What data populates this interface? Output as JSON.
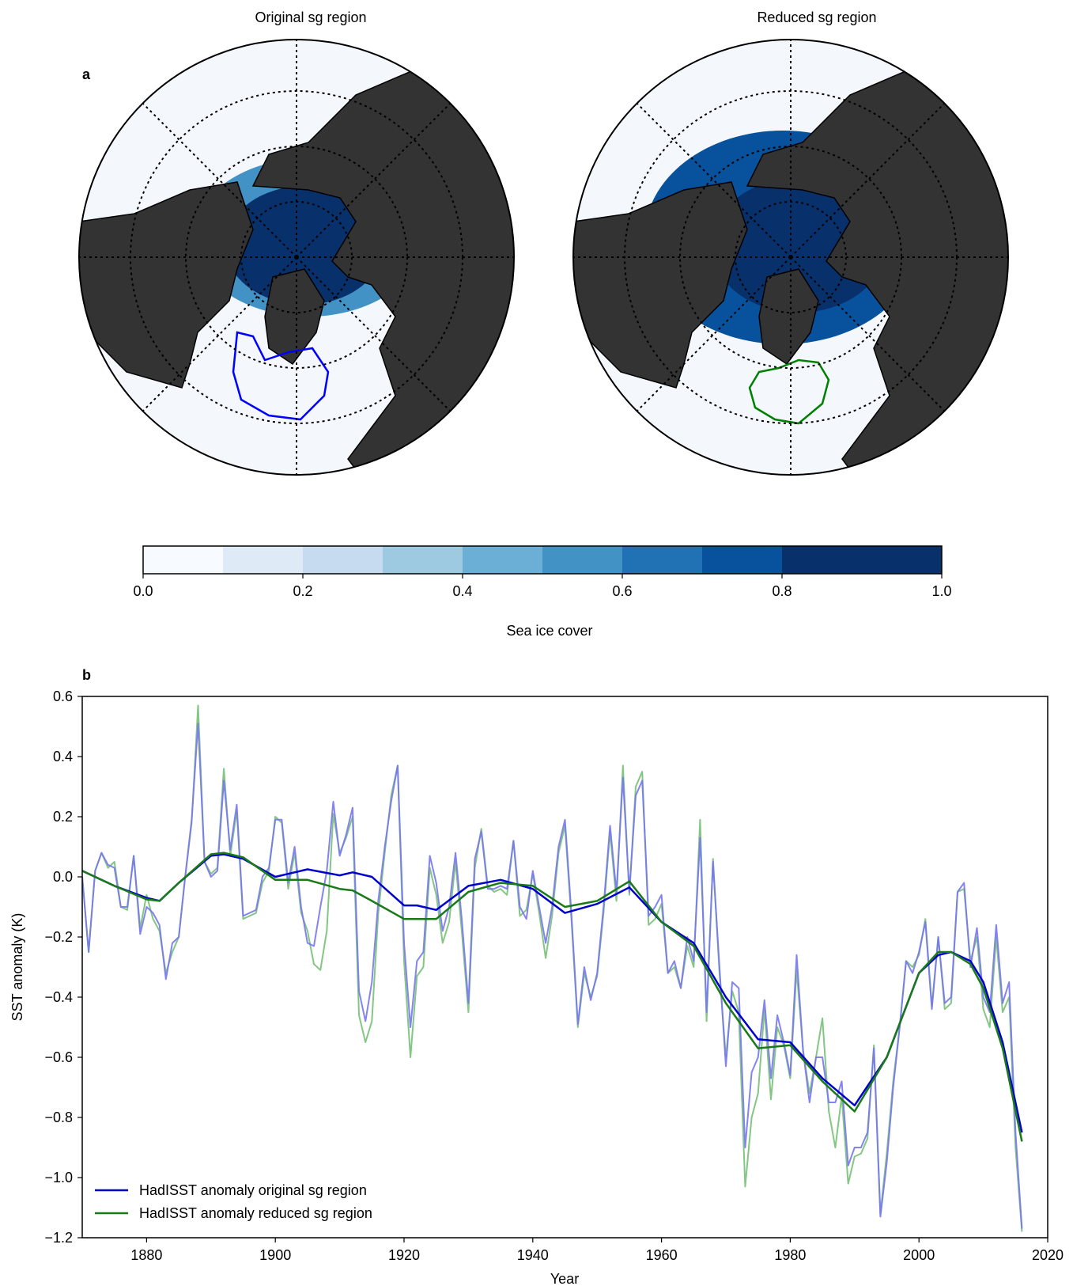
{
  "panel_a": {
    "label": "a",
    "left_title": "Original sg region",
    "right_title": "Reduced sg region",
    "colorbar": {
      "label": "Sea ice cover",
      "ticks": [
        "0.0",
        "0.2",
        "0.4",
        "0.6",
        "0.8",
        "1.0"
      ],
      "colors": [
        "#f7fbff",
        "#deebf7",
        "#c6dbef",
        "#9ecae1",
        "#6baed6",
        "#4292c6",
        "#2171b5",
        "#08519c",
        "#08306b",
        "#08306b"
      ]
    },
    "colors": {
      "land": "#333333",
      "ocean": "#f4f8fd",
      "original_region": "#0000ff",
      "reduced_region": "#008000",
      "ice_dark": "#08306b",
      "ice_mid": "#08519c",
      "ice_light": "#4292c6"
    }
  },
  "panel_b": {
    "label": "b"
  },
  "chart_data": {
    "type": "line",
    "xlabel": "Year",
    "ylabel": "SST anomaly (K)",
    "xlim": [
      1870,
      2020
    ],
    "ylim": [
      -1.2,
      0.6
    ],
    "xticks": [
      "1880",
      "1900",
      "1920",
      "1940",
      "1960",
      "1980",
      "2000",
      "2020"
    ],
    "yticks": [
      "0.6",
      "0.4",
      "0.2",
      "0.0",
      "−0.2",
      "−0.4",
      "−0.6",
      "−0.8",
      "−1.0",
      "−1.2"
    ],
    "legend_position": "bottom-left",
    "series": [
      {
        "name": "HadISST anomaly original sg region",
        "color": "#0000cc",
        "x": [
          1870,
          1875,
          1880,
          1882,
          1885,
          1890,
          1892,
          1895,
          1900,
          1905,
          1910,
          1912,
          1915,
          1920,
          1922,
          1925,
          1930,
          1935,
          1940,
          1945,
          1950,
          1955,
          1960,
          1965,
          1970,
          1975,
          1980,
          1985,
          1990,
          1995,
          2000,
          2003,
          2005,
          2008,
          2010,
          2013,
          2016
        ],
        "y": [
          0.02,
          -0.03,
          -0.07,
          -0.08,
          -0.02,
          0.07,
          0.075,
          0.06,
          0.0,
          0.025,
          0.005,
          0.015,
          0.0,
          -0.095,
          -0.095,
          -0.11,
          -0.03,
          -0.01,
          -0.04,
          -0.12,
          -0.09,
          -0.035,
          -0.15,
          -0.22,
          -0.4,
          -0.54,
          -0.55,
          -0.67,
          -0.76,
          -0.6,
          -0.32,
          -0.26,
          -0.25,
          -0.28,
          -0.35,
          -0.55,
          -0.85
        ]
      },
      {
        "name": "HadISST anomaly reduced sg region",
        "color": "#1a7a1a",
        "x": [
          1870,
          1875,
          1880,
          1882,
          1885,
          1890,
          1892,
          1895,
          1900,
          1905,
          1910,
          1912,
          1915,
          1920,
          1922,
          1925,
          1930,
          1935,
          1940,
          1945,
          1950,
          1955,
          1960,
          1965,
          1970,
          1975,
          1980,
          1985,
          1990,
          1995,
          2000,
          2003,
          2005,
          2008,
          2010,
          2013,
          2016
        ],
        "y": [
          0.02,
          -0.03,
          -0.075,
          -0.08,
          -0.02,
          0.075,
          0.08,
          0.065,
          -0.01,
          -0.01,
          -0.04,
          -0.045,
          -0.08,
          -0.14,
          -0.14,
          -0.14,
          -0.05,
          -0.02,
          -0.03,
          -0.1,
          -0.08,
          -0.015,
          -0.15,
          -0.23,
          -0.42,
          -0.57,
          -0.56,
          -0.68,
          -0.78,
          -0.6,
          -0.32,
          -0.25,
          -0.25,
          -0.29,
          -0.37,
          -0.57,
          -0.88
        ]
      },
      {
        "name": "",
        "color": "#7777ee",
        "x": [
          1870,
          1871,
          1872,
          1873,
          1874,
          1875,
          1876,
          1877,
          1878,
          1879,
          1880,
          1881,
          1882,
          1883,
          1884,
          1885,
          1886,
          1887,
          1888,
          1889,
          1890,
          1891,
          1892,
          1893,
          1894,
          1895,
          1896,
          1897,
          1898,
          1899,
          1900,
          1901,
          1902,
          1903,
          1904,
          1905,
          1906,
          1907,
          1908,
          1909,
          1910,
          1911,
          1912,
          1913,
          1914,
          1915,
          1916,
          1917,
          1918,
          1919,
          1920,
          1921,
          1922,
          1923,
          1924,
          1925,
          1926,
          1927,
          1928,
          1929,
          1930,
          1931,
          1932,
          1933,
          1934,
          1935,
          1936,
          1937,
          1938,
          1939,
          1940,
          1941,
          1942,
          1943,
          1944,
          1945,
          1946,
          1947,
          1948,
          1949,
          1950,
          1951,
          1952,
          1953,
          1954,
          1955,
          1956,
          1957,
          1958,
          1959,
          1960,
          1961,
          1962,
          1963,
          1964,
          1965,
          1966,
          1967,
          1968,
          1969,
          1970,
          1971,
          1972,
          1973,
          1974,
          1975,
          1976,
          1977,
          1978,
          1979,
          1980,
          1981,
          1982,
          1983,
          1984,
          1985,
          1986,
          1987,
          1988,
          1989,
          1990,
          1991,
          1992,
          1993,
          1994,
          1995,
          1996,
          1997,
          1998,
          1999,
          2000,
          2001,
          2002,
          2003,
          2004,
          2005,
          2006,
          2007,
          2008,
          2009,
          2010,
          2011,
          2012,
          2013,
          2014,
          2015,
          2016
        ],
        "y": [
          0.0,
          -0.25,
          0.02,
          0.08,
          0.04,
          0.03,
          -0.1,
          -0.1,
          0.07,
          -0.19,
          -0.1,
          -0.12,
          -0.16,
          -0.34,
          -0.22,
          -0.2,
          0.0,
          0.19,
          0.51,
          0.05,
          0.0,
          0.02,
          0.32,
          0.09,
          0.24,
          -0.13,
          -0.12,
          -0.11,
          0.0,
          0.03,
          0.19,
          0.19,
          -0.02,
          0.1,
          -0.1,
          -0.22,
          -0.23,
          -0.1,
          0.02,
          0.25,
          0.07,
          0.14,
          0.23,
          -0.38,
          -0.48,
          -0.35,
          -0.08,
          0.1,
          0.25,
          0.37,
          -0.22,
          -0.5,
          -0.28,
          -0.25,
          0.07,
          -0.02,
          -0.18,
          -0.1,
          0.08,
          -0.15,
          -0.42,
          0.06,
          0.15,
          -0.04,
          -0.04,
          -0.03,
          -0.04,
          0.12,
          -0.1,
          -0.14,
          0.02,
          -0.1,
          -0.22,
          -0.1,
          0.1,
          0.19,
          -0.12,
          -0.49,
          -0.3,
          -0.41,
          -0.32,
          -0.1,
          0.17,
          -0.05,
          0.33,
          -0.05,
          0.27,
          0.32,
          -0.13,
          -0.1,
          -0.06,
          -0.32,
          -0.28,
          -0.37,
          -0.2,
          -0.28,
          0.13,
          -0.45,
          0.05,
          -0.3,
          -0.63,
          -0.35,
          -0.37,
          -0.9,
          -0.65,
          -0.6,
          -0.41,
          -0.67,
          -0.46,
          -0.55,
          -0.66,
          -0.26,
          -0.58,
          -0.75,
          -0.6,
          -0.6,
          -0.75,
          -0.75,
          -0.68,
          -0.96,
          -0.9,
          -0.9,
          -0.85,
          -0.57,
          -1.13,
          -0.95,
          -0.7,
          -0.5,
          -0.28,
          -0.32,
          -0.25,
          -0.15,
          -0.44,
          -0.2,
          -0.42,
          -0.4,
          -0.05,
          -0.02,
          -0.3,
          -0.17,
          -0.4,
          -0.45,
          -0.16,
          -0.42,
          -0.35,
          -0.85,
          -1.17
        ]
      },
      {
        "name": "",
        "color": "#77c077",
        "x": [
          1870,
          1871,
          1872,
          1873,
          1874,
          1875,
          1876,
          1877,
          1878,
          1879,
          1880,
          1881,
          1882,
          1883,
          1884,
          1885,
          1886,
          1887,
          1888,
          1889,
          1890,
          1891,
          1892,
          1893,
          1894,
          1895,
          1896,
          1897,
          1898,
          1899,
          1900,
          1901,
          1902,
          1903,
          1904,
          1905,
          1906,
          1907,
          1908,
          1909,
          1910,
          1911,
          1912,
          1913,
          1914,
          1915,
          1916,
          1917,
          1918,
          1919,
          1920,
          1921,
          1922,
          1923,
          1924,
          1925,
          1926,
          1927,
          1928,
          1929,
          1930,
          1931,
          1932,
          1933,
          1934,
          1935,
          1936,
          1937,
          1938,
          1939,
          1940,
          1941,
          1942,
          1943,
          1944,
          1945,
          1946,
          1947,
          1948,
          1949,
          1950,
          1951,
          1952,
          1953,
          1954,
          1955,
          1956,
          1957,
          1958,
          1959,
          1960,
          1961,
          1962,
          1963,
          1964,
          1965,
          1966,
          1967,
          1968,
          1969,
          1970,
          1971,
          1972,
          1973,
          1974,
          1975,
          1976,
          1977,
          1978,
          1979,
          1980,
          1981,
          1982,
          1983,
          1984,
          1985,
          1986,
          1987,
          1988,
          1989,
          1990,
          1991,
          1992,
          1993,
          1994,
          1995,
          1996,
          1997,
          1998,
          1999,
          2000,
          2001,
          2002,
          2003,
          2004,
          2005,
          2006,
          2007,
          2008,
          2009,
          2010,
          2011,
          2012,
          2013,
          2014,
          2015,
          2016
        ],
        "y": [
          0.0,
          -0.25,
          0.02,
          0.08,
          0.03,
          0.05,
          -0.1,
          -0.11,
          0.07,
          -0.17,
          -0.06,
          -0.14,
          -0.18,
          -0.32,
          -0.25,
          -0.2,
          0.0,
          0.18,
          0.57,
          0.05,
          0.01,
          0.03,
          0.36,
          0.07,
          0.22,
          -0.14,
          -0.13,
          -0.12,
          -0.02,
          0.02,
          0.2,
          0.18,
          -0.04,
          0.08,
          -0.12,
          -0.18,
          -0.29,
          -0.31,
          -0.18,
          0.21,
          0.08,
          0.13,
          0.2,
          -0.46,
          -0.55,
          -0.48,
          -0.12,
          0.08,
          0.27,
          0.37,
          -0.28,
          -0.6,
          -0.33,
          -0.3,
          0.03,
          -0.06,
          -0.22,
          -0.15,
          0.05,
          -0.19,
          -0.45,
          0.03,
          0.16,
          -0.03,
          -0.05,
          -0.04,
          -0.06,
          0.12,
          -0.13,
          -0.11,
          0.01,
          -0.12,
          -0.27,
          -0.13,
          0.08,
          0.17,
          -0.14,
          -0.5,
          -0.32,
          -0.4,
          -0.33,
          -0.12,
          0.15,
          -0.08,
          0.37,
          -0.06,
          0.3,
          0.35,
          -0.16,
          -0.14,
          -0.09,
          -0.32,
          -0.3,
          -0.37,
          -0.23,
          -0.3,
          0.19,
          -0.48,
          0.06,
          -0.32,
          -0.6,
          -0.38,
          -0.45,
          -1.03,
          -0.8,
          -0.72,
          -0.44,
          -0.74,
          -0.5,
          -0.56,
          -0.67,
          -0.31,
          -0.58,
          -0.72,
          -0.6,
          -0.47,
          -0.78,
          -0.9,
          -0.73,
          -1.02,
          -0.93,
          -0.92,
          -0.87,
          -0.56,
          -1.12,
          -0.92,
          -0.68,
          -0.5,
          -0.28,
          -0.3,
          -0.26,
          -0.14,
          -0.43,
          -0.2,
          -0.44,
          -0.42,
          -0.05,
          -0.04,
          -0.28,
          -0.2,
          -0.44,
          -0.5,
          -0.2,
          -0.45,
          -0.4,
          -0.9,
          -1.18
        ]
      }
    ]
  }
}
